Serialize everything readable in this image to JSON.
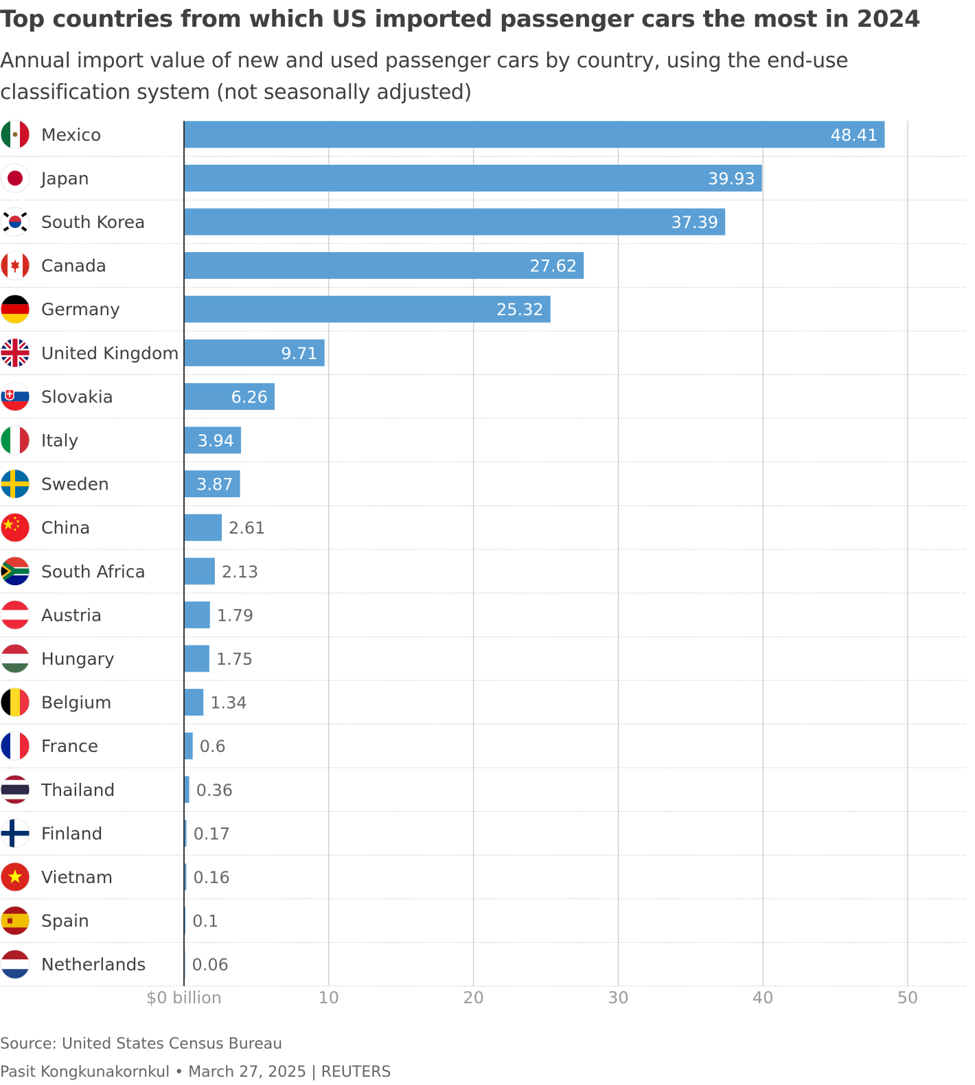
{
  "header": {
    "title": "Top countries from which US imported passenger cars the most in 2024",
    "subtitle": "Annual import value of new and used passenger cars by country, using the end-use classification system (not seasonally adjusted)"
  },
  "chart_data": {
    "type": "bar",
    "orientation": "horizontal",
    "title": "Top countries from which US imported passenger cars the most in 2024",
    "subtitle": "Annual import value of new and used passenger cars by country, using the end-use classification system (not seasonally adjusted)",
    "categories": [
      "Mexico",
      "Japan",
      "South Korea",
      "Canada",
      "Germany",
      "United Kingdom",
      "Slovakia",
      "Italy",
      "Sweden",
      "China",
      "South Africa",
      "Austria",
      "Hungary",
      "Belgium",
      "France",
      "Thailand",
      "Finland",
      "Vietnam",
      "Spain",
      "Netherlands"
    ],
    "values": [
      48.41,
      39.93,
      37.39,
      27.62,
      25.32,
      9.71,
      6.26,
      3.94,
      3.87,
      2.61,
      2.13,
      1.79,
      1.75,
      1.34,
      0.6,
      0.36,
      0.17,
      0.16,
      0.1,
      0.06
    ],
    "value_labels": [
      "48.41",
      "39.93",
      "37.39",
      "27.62",
      "25.32",
      "9.71",
      "6.26",
      "3.94",
      "3.87",
      "2.61",
      "2.13",
      "1.79",
      "1.75",
      "1.34",
      "0.6",
      "0.36",
      "0.17",
      "0.16",
      "0.1",
      "0.06"
    ],
    "xlim": [
      0,
      50
    ],
    "xticks": [
      0,
      10,
      20,
      30,
      40,
      50
    ],
    "xtick_labels": [
      "$0 billion",
      "10",
      "20",
      "30",
      "40",
      "50"
    ],
    "grid": true,
    "legend": "none",
    "bar_color": "#5b9fd4",
    "flag_icons": [
      "mexico-flag-icon",
      "japan-flag-icon",
      "south-korea-flag-icon",
      "canada-flag-icon",
      "germany-flag-icon",
      "united-kingdom-flag-icon",
      "slovakia-flag-icon",
      "italy-flag-icon",
      "sweden-flag-icon",
      "china-flag-icon",
      "south-africa-flag-icon",
      "austria-flag-icon",
      "hungary-flag-icon",
      "belgium-flag-icon",
      "france-flag-icon",
      "thailand-flag-icon",
      "finland-flag-icon",
      "vietnam-flag-icon",
      "spain-flag-icon",
      "netherlands-flag-icon"
    ]
  },
  "footer": {
    "source": "Source: United States Census Bureau",
    "byline": "Pasit Kongkunakornkul • March 27, 2025 | REUTERS"
  }
}
